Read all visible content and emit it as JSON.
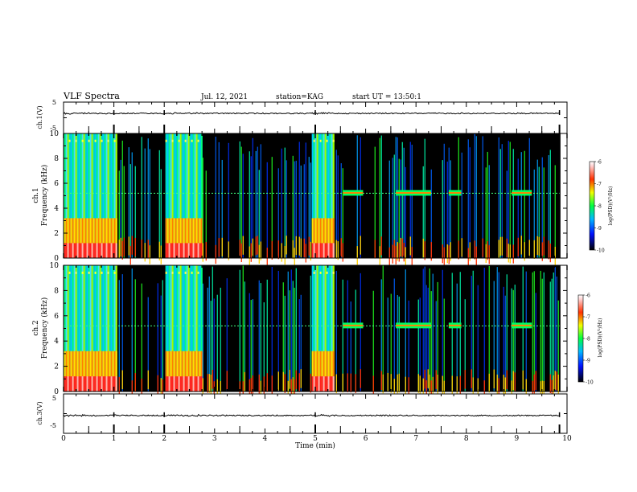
{
  "header": {
    "title": "VLF Spectra",
    "date": "Jul. 12, 2021",
    "station": "station=KAG",
    "start": "start UT = 13:50:1"
  },
  "chart_data": [
    {
      "type": "line",
      "name": "ch1-waveform",
      "ylabel": "ch.1(V)",
      "ylim": [
        -5,
        5
      ],
      "yticks": [
        "5",
        "-5"
      ],
      "xlim": [
        0,
        10
      ]
    },
    {
      "type": "heatmap",
      "name": "ch1-spectrogram",
      "ylabel_channel": "ch.1",
      "ylabel": "Frequency (kHz)",
      "ylim": [
        0,
        10
      ],
      "yticks": [
        "0",
        "2",
        "4",
        "6",
        "8",
        "10"
      ],
      "xlim": [
        0,
        10
      ],
      "tone_band_khz": 5.2,
      "colorbar": {
        "label": "log(PSD)(V²/Hz)",
        "range": [
          -10,
          -6
        ],
        "ticks": [
          "-6",
          "-7",
          "-8",
          "-9",
          "-10"
        ]
      }
    },
    {
      "type": "heatmap",
      "name": "ch2-spectrogram",
      "ylabel_channel": "ch.2",
      "ylabel": "Frequency (kHz)",
      "ylim": [
        0,
        10
      ],
      "yticks": [
        "0",
        "2",
        "4",
        "6",
        "8",
        "10"
      ],
      "xlim": [
        0,
        10
      ],
      "tone_band_khz": 5.2,
      "colorbar": {
        "label": "log(PSD)(V²/Hz)",
        "range": [
          -10,
          -6
        ],
        "ticks": [
          "-6",
          "-7",
          "-8",
          "-9",
          "-10"
        ]
      }
    },
    {
      "type": "line",
      "name": "ch3-waveform",
      "ylabel": "ch.3(V)",
      "ylim": [
        -5,
        5
      ],
      "yticks": [
        "5",
        "-5"
      ],
      "xlim": [
        0,
        10
      ],
      "xlabel": "Time (min)",
      "xticks": [
        "0",
        "1",
        "2",
        "3",
        "4",
        "5",
        "6",
        "7",
        "8",
        "9",
        "10"
      ]
    }
  ],
  "activity_windows_min": [
    {
      "start": 0.0,
      "end": 1.05,
      "level": "high"
    },
    {
      "start": 2.0,
      "end": 2.75,
      "level": "high"
    },
    {
      "start": 4.9,
      "end": 5.35,
      "level": "high"
    },
    {
      "start": 5.55,
      "end": 5.95,
      "level": "tone"
    },
    {
      "start": 6.6,
      "end": 7.3,
      "level": "tone"
    },
    {
      "start": 7.65,
      "end": 7.9,
      "level": "tone"
    },
    {
      "start": 8.9,
      "end": 9.3,
      "level": "tone"
    }
  ],
  "spike_times_min": [
    1.0,
    2.0,
    5.0,
    9.85
  ]
}
